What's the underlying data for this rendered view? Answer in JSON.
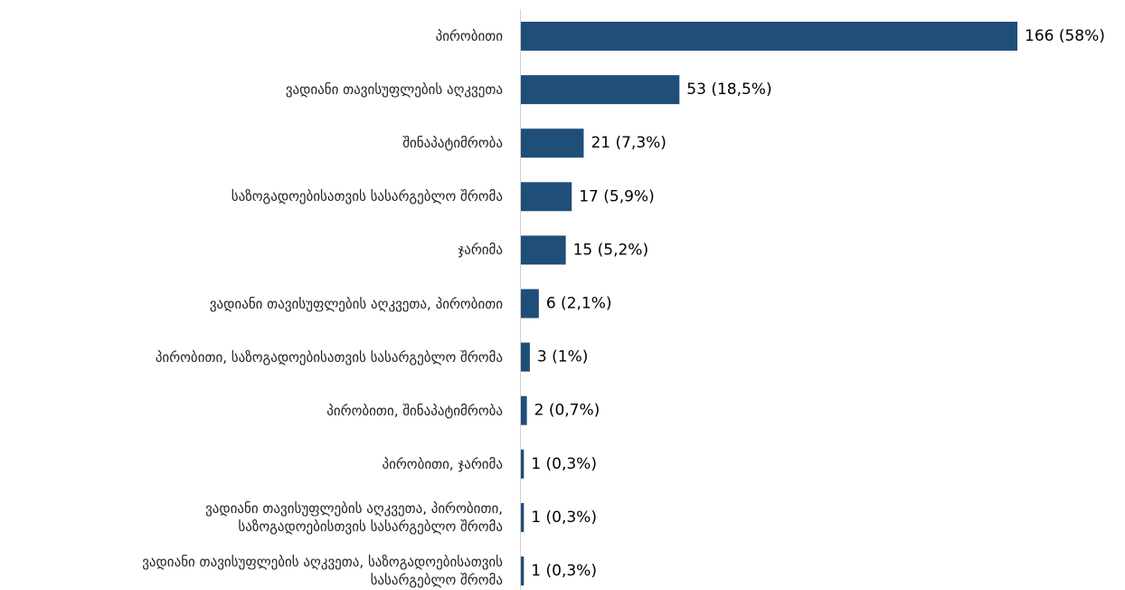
{
  "chart_data": {
    "type": "bar",
    "orientation": "horizontal",
    "categories": [
      "პირობითი",
      "ვადიანი თავისუფლების აღკვეთა",
      "შინაპატიმრობა",
      "საზოგადოებისათვის სასარგებლო შრომა",
      "ჯარიმა",
      "ვადიანი თავისუფლების აღკვეთა, პირობითი",
      "პირობითი, საზოგადოებისათვის სასარგებლო შრომა",
      "პირობითი, შინაპატიმრობა",
      "პირობითი, ჯარიმა",
      "ვადიანი თავისუფლების აღკვეთა, პირობითი,\nსაზოგადოებისთვის სასარგებლო შრომა",
      "ვადიანი თავისუფლების აღკვეთა, საზოგადოებისათვის\nსასარგებლო შრომა"
    ],
    "values": [
      166,
      53,
      21,
      17,
      15,
      6,
      3,
      2,
      1,
      1,
      1
    ],
    "value_labels": [
      "166 (58%)",
      "53 (18,5%)",
      "21 (7,3%)",
      "17 (5,9%)",
      "15 (5,2%)",
      "6 (2,1%)",
      "3 (1%)",
      "2 (0,7%)",
      "1 (0,3%)",
      "1 (0,3%)",
      "1 (0,3%)"
    ],
    "color": "#1f4e79",
    "xlim": [
      0,
      166
    ]
  }
}
